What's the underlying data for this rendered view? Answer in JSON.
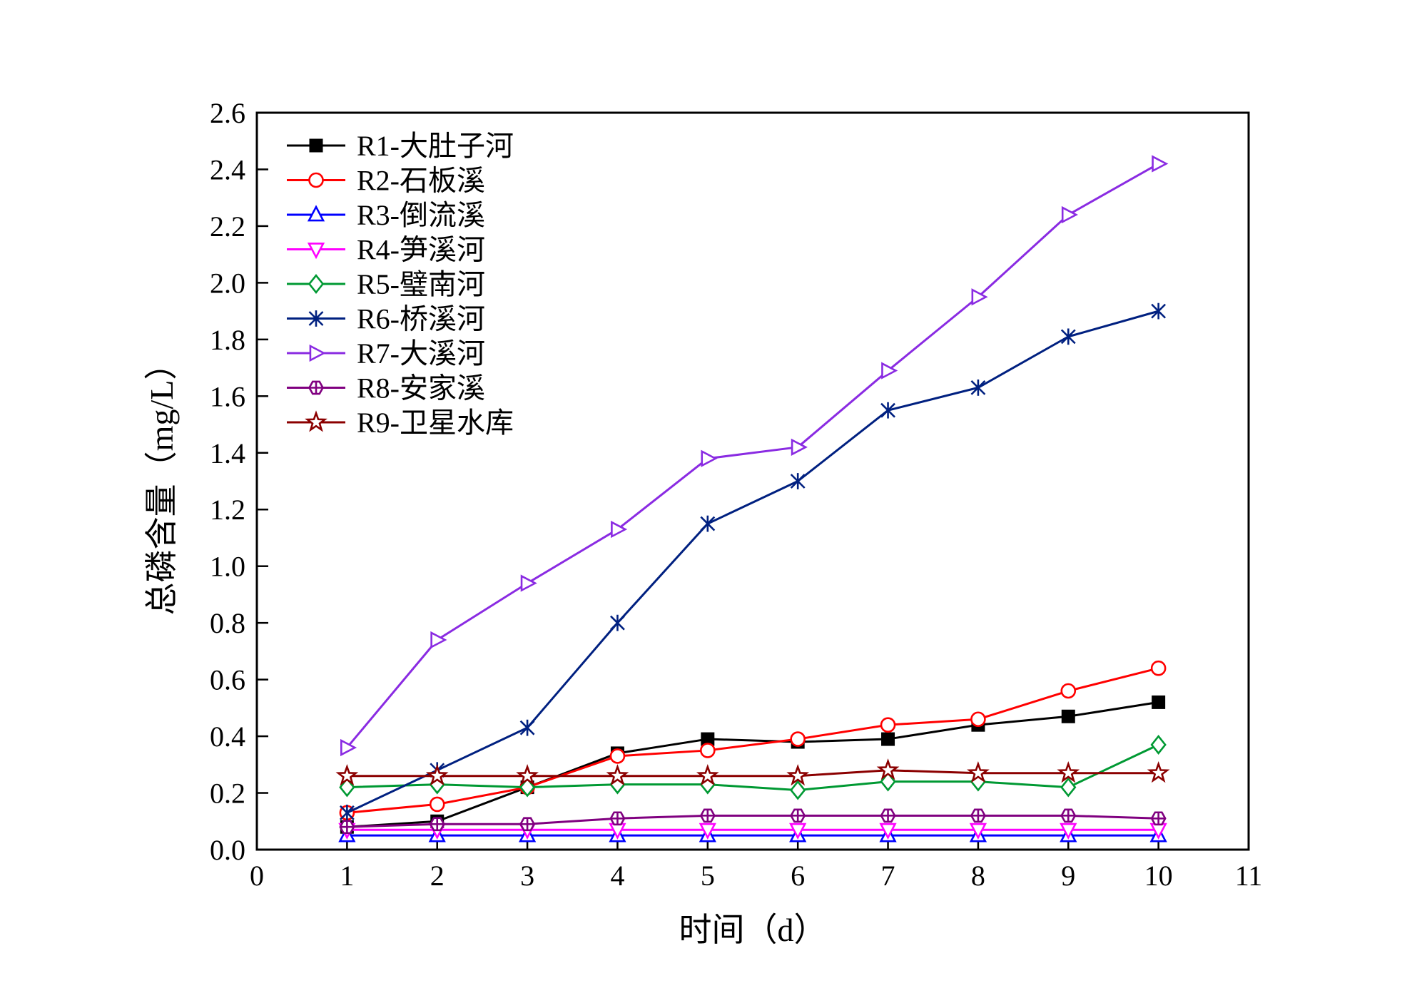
{
  "chart_data": {
    "type": "line",
    "title": "",
    "xlabel": "时间（d）",
    "ylabel": "总磷含量（mg/L）",
    "xlim": [
      0,
      11
    ],
    "ylim": [
      0.0,
      2.6
    ],
    "xticks": [
      0,
      1,
      2,
      3,
      4,
      5,
      6,
      7,
      8,
      9,
      10,
      11
    ],
    "yticks": [
      0.0,
      0.2,
      0.4,
      0.6,
      0.8,
      1.0,
      1.2,
      1.4,
      1.6,
      1.8,
      2.0,
      2.2,
      2.4,
      2.6
    ],
    "grid": false,
    "legend_position": "top-left",
    "x": [
      1,
      2,
      3,
      4,
      5,
      6,
      7,
      8,
      9,
      10
    ],
    "series": [
      {
        "name": "R1-大肚子河",
        "color": "#000000",
        "marker": "square-filled",
        "values": [
          0.08,
          0.1,
          0.22,
          0.34,
          0.39,
          0.38,
          0.39,
          0.44,
          0.47,
          0.52
        ]
      },
      {
        "name": "R2-石板溪",
        "color": "#ff0000",
        "marker": "circle-open",
        "values": [
          0.13,
          0.16,
          0.22,
          0.33,
          0.35,
          0.39,
          0.44,
          0.46,
          0.56,
          0.64
        ]
      },
      {
        "name": "R3-倒流溪",
        "color": "#0000ff",
        "marker": "triangle-up-open",
        "values": [
          0.05,
          0.05,
          0.05,
          0.05,
          0.05,
          0.05,
          0.05,
          0.05,
          0.05,
          0.05
        ]
      },
      {
        "name": "R4-笋溪河",
        "color": "#ff00ff",
        "marker": "triangle-down-open",
        "values": [
          0.07,
          0.07,
          0.07,
          0.07,
          0.07,
          0.07,
          0.07,
          0.07,
          0.07,
          0.07
        ]
      },
      {
        "name": "R5-璧南河",
        "color": "#009933",
        "marker": "diamond-open",
        "values": [
          0.22,
          0.23,
          0.22,
          0.23,
          0.23,
          0.21,
          0.24,
          0.24,
          0.22,
          0.37
        ]
      },
      {
        "name": "R6-桥溪河",
        "color": "#002080",
        "marker": "x",
        "values": [
          0.13,
          0.28,
          0.43,
          0.8,
          1.15,
          1.3,
          1.55,
          1.63,
          1.81,
          1.9
        ]
      },
      {
        "name": "R7-大溪河",
        "color": "#8a2be2",
        "marker": "triangle-right-open",
        "values": [
          0.36,
          0.74,
          0.94,
          1.13,
          1.38,
          1.42,
          1.69,
          1.95,
          2.24,
          2.42
        ]
      },
      {
        "name": "R8-安家溪",
        "color": "#800080",
        "marker": "hexagon-cross-open",
        "values": [
          0.08,
          0.09,
          0.09,
          0.11,
          0.12,
          0.12,
          0.12,
          0.12,
          0.12,
          0.11
        ]
      },
      {
        "name": "R9-卫星水库",
        "color": "#8b0000",
        "marker": "star-open",
        "values": [
          0.26,
          0.26,
          0.26,
          0.26,
          0.26,
          0.26,
          0.28,
          0.27,
          0.27,
          0.27
        ]
      }
    ]
  }
}
